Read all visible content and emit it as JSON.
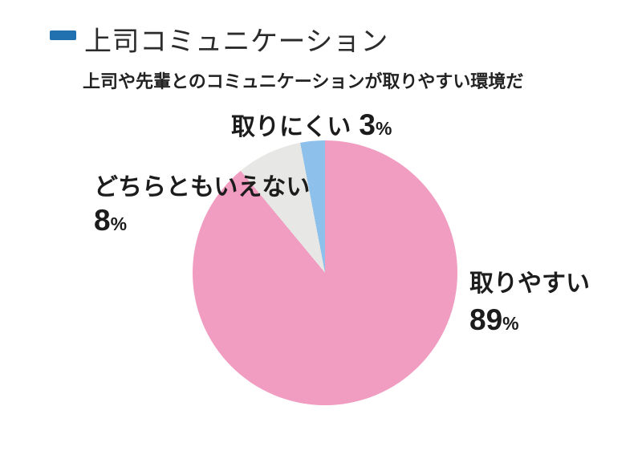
{
  "page": {
    "background": "#ffffff"
  },
  "header": {
    "title": "上司コミュニケーション",
    "subtitle": "上司や先輩とのコミュニケーションが取りやすい環境だ"
  },
  "colors": {
    "accent": "#2170af",
    "title_text": "#2b2b2b",
    "label_text": "#1c1c1c",
    "pie_easy": "#f19cc1",
    "pie_neutral": "#e7e7e5",
    "pie_hard": "#8ec0ec"
  },
  "chart_data": {
    "type": "pie",
    "title": "上司コミュニケーション",
    "subtitle": "上司や先輩とのコミュニケーションが取りやすい環境だ",
    "direction": "clockwise",
    "start_angle_deg": 0,
    "legend_position": "outside-labels",
    "unit": "%",
    "slices": [
      {
        "label": "取りやすい",
        "value": 89,
        "unit": "%",
        "color": "#f19cc1"
      },
      {
        "label": "どちらともいえない",
        "value": 8,
        "unit": "%",
        "color": "#e7e7e5"
      },
      {
        "label": "取りにくい",
        "value": 3,
        "unit": "%",
        "color": "#8ec0ec"
      }
    ]
  }
}
